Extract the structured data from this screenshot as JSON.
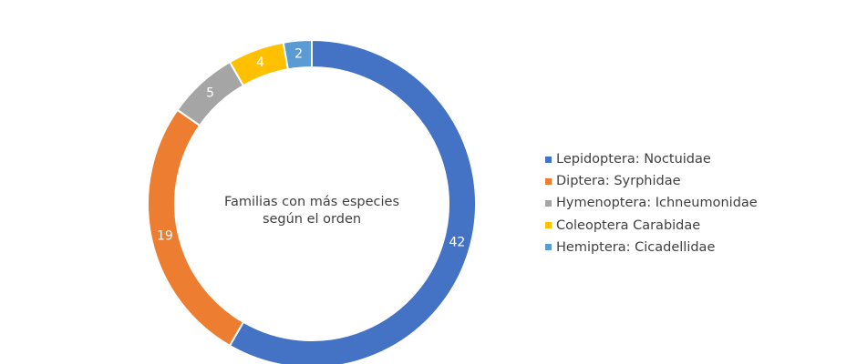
{
  "chart_data": {
    "type": "pie",
    "title": "Familias con más especies según el orden",
    "title_lines": [
      "Familias con más especies",
      "según el orden"
    ],
    "donut": true,
    "categories": [
      "Lepidoptera: Noctuidae",
      "Diptera: Syrphidae",
      "Hymenoptera: Ichneumonidae",
      "Coleoptera Carabidae",
      "Hemiptera: Cicadellidae"
    ],
    "values": [
      42,
      19,
      5,
      4,
      2
    ],
    "colors": [
      "#4472c4",
      "#ed7d31",
      "#a5a5a5",
      "#ffc000",
      "#5b9bd5"
    ],
    "legend_position": "right"
  }
}
